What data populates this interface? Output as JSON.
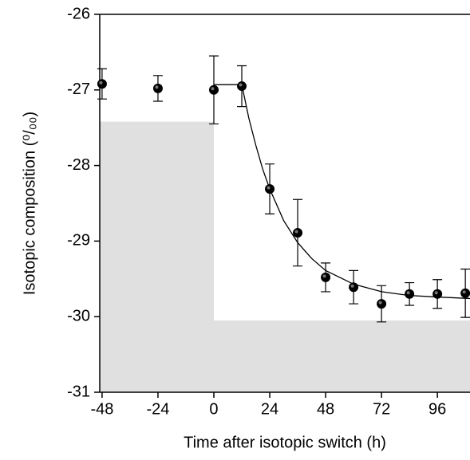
{
  "chart_data": {
    "type": "scatter",
    "x_label": "Time after isotopic switch  (h)",
    "y_label": "Isotopic composition (⁰/₀₀)",
    "xlim": [
      -49,
      110
    ],
    "ylim": [
      -31,
      -26
    ],
    "xticks": [
      -48,
      -24,
      0,
      24,
      48,
      72,
      96
    ],
    "yticks": [
      -31,
      -30,
      -29,
      -28,
      -27,
      -26
    ],
    "series": [
      {
        "color": "#000000",
        "x": [
          -48,
          -24,
          0,
          12,
          24,
          36,
          48,
          60,
          72,
          84,
          96,
          108
        ],
        "values": [
          -26.92,
          -26.98,
          -27.0,
          -26.95,
          -28.31,
          -28.89,
          -29.48,
          -29.61,
          -29.83,
          -29.7,
          -29.7,
          -29.69
        ],
        "errors": [
          0.2,
          0.17,
          0.45,
          0.27,
          0.33,
          0.44,
          0.19,
          0.22,
          0.24,
          0.15,
          0.19,
          0.32
        ]
      }
    ],
    "fit": {
      "color": "#000000",
      "x": [
        0,
        12,
        15,
        18,
        21,
        24,
        30,
        36,
        42,
        48,
        60,
        72,
        84,
        96,
        110
      ],
      "values": [
        -26.93,
        -26.93,
        -27.37,
        -27.73,
        -28.05,
        -28.31,
        -28.73,
        -29.02,
        -29.23,
        -29.39,
        -29.57,
        -29.67,
        -29.72,
        -29.74,
        -29.76
      ]
    },
    "shaded_regions": [
      {
        "color": "#e0e0e0",
        "x": [
          -49,
          0
        ],
        "y": [
          -31,
          -27.42
        ]
      },
      {
        "color": "#e0e0e0",
        "x": [
          0,
          110
        ],
        "y": [
          -31,
          -30.05
        ]
      }
    ]
  }
}
